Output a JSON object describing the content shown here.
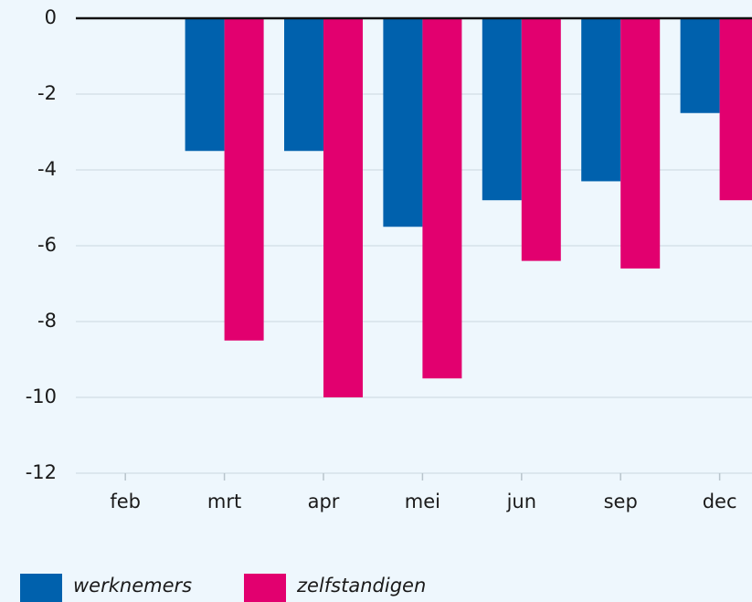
{
  "chart_data": {
    "type": "bar",
    "categories": [
      "feb",
      "mrt",
      "apr",
      "mei",
      "jun",
      "sep",
      "dec"
    ],
    "series": [
      {
        "name": "werknemers",
        "color": "#0061ad",
        "values": [
          0,
          -3.5,
          -3.5,
          -5.5,
          -4.8,
          -4.3,
          -2.5
        ]
      },
      {
        "name": "zelfstandigen",
        "color": "#e2006f",
        "values": [
          0,
          -8.5,
          -10,
          -9.5,
          -6.4,
          -6.6,
          -4.8
        ]
      }
    ],
    "ylim": [
      -12,
      0
    ],
    "yticks": [
      0,
      -2,
      -4,
      -6,
      -8,
      -10,
      -12
    ],
    "grid": true
  }
}
